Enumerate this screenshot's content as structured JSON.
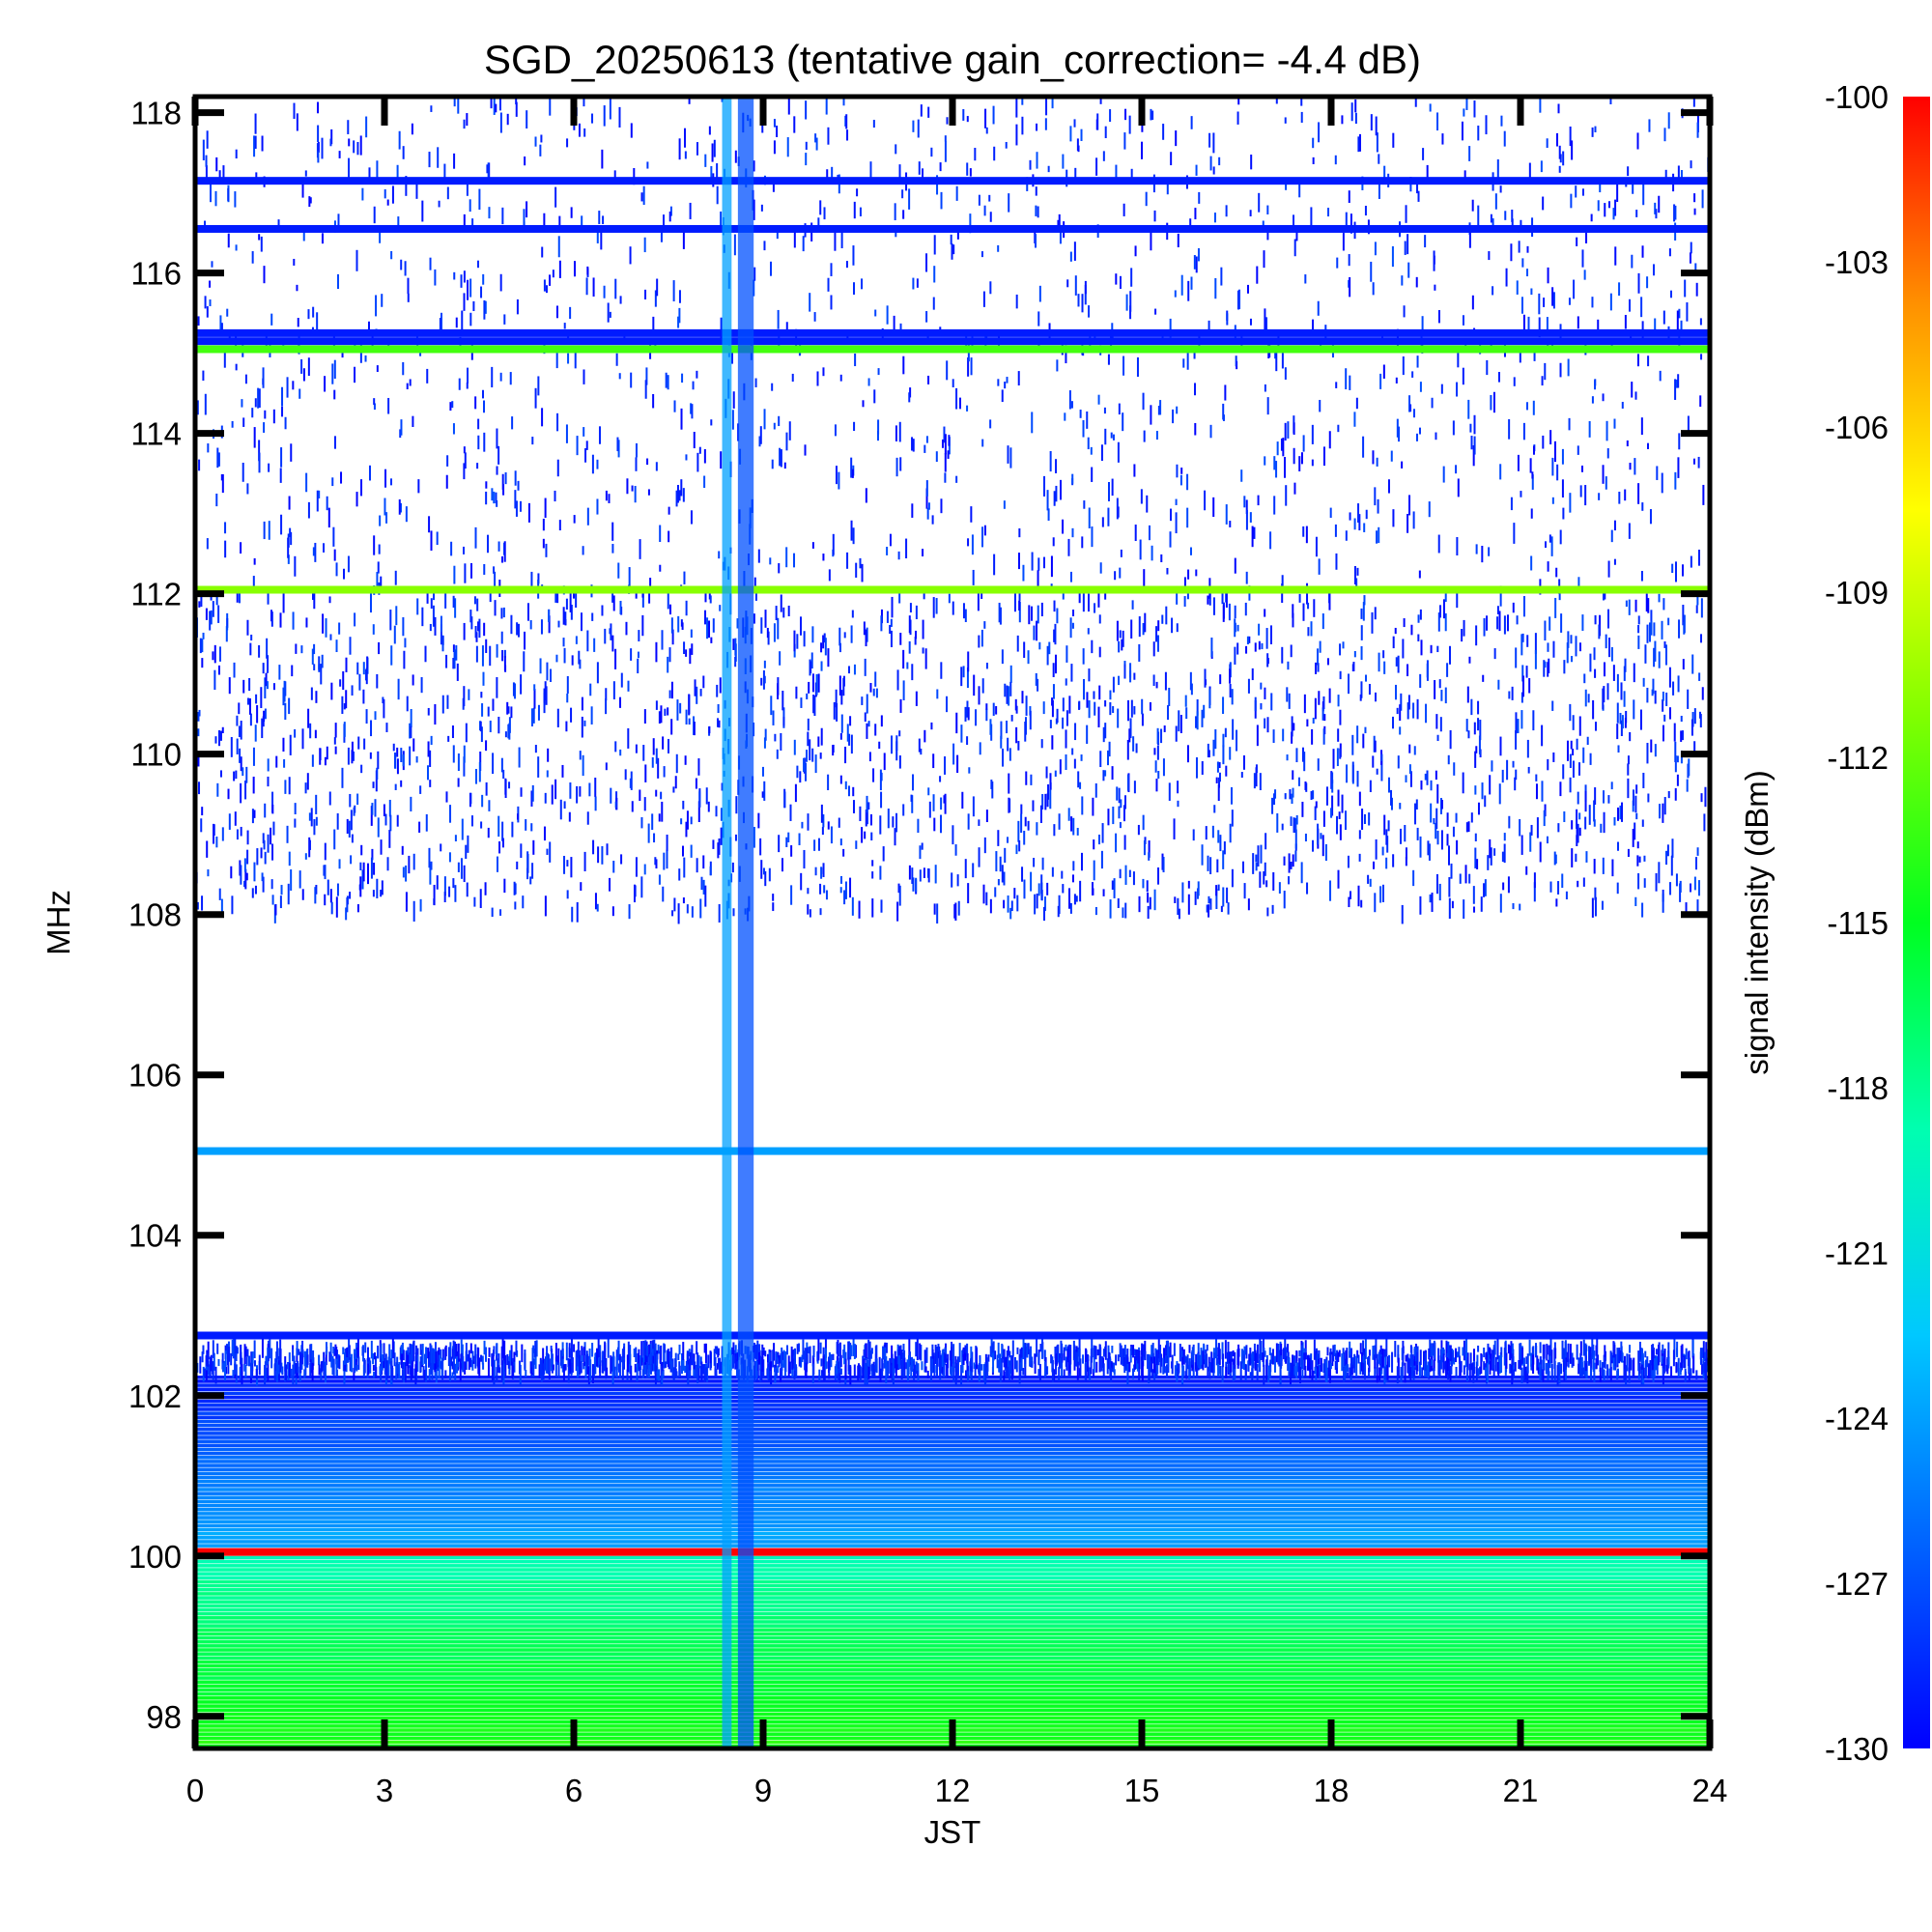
{
  "chart_data": {
    "type": "heatmap",
    "title": "SGD_20250613 (tentative gain_correction= -4.4 dB)",
    "xlabel": "JST",
    "ylabel": "MHz",
    "colorbar_label": "signal intensity (dBm)",
    "xlim": [
      0,
      24
    ],
    "ylim": [
      97.6,
      118.2
    ],
    "x_ticks": [
      0,
      3,
      6,
      9,
      12,
      15,
      18,
      21,
      24
    ],
    "x_tick_labels": [
      "0",
      "3",
      "6",
      "9",
      "12",
      "15",
      "18",
      "21",
      "24"
    ],
    "y_ticks": [
      98,
      100,
      102,
      104,
      106,
      108,
      110,
      112,
      114,
      116,
      118
    ],
    "y_tick_labels": [
      "98",
      "100",
      "102",
      "104",
      "106",
      "108",
      "110",
      "112",
      "114",
      "116",
      "118"
    ],
    "colorbar_range": [
      -130,
      -100
    ],
    "colorbar_ticks": [
      -130,
      -127,
      -124,
      -121,
      -118,
      -115,
      -112,
      -109,
      -106,
      -103,
      -100
    ],
    "colorbar_tick_labels": [
      "-130",
      "-127",
      "-124",
      "-121",
      "-118",
      "-115",
      "-112",
      "-109",
      "-106",
      "-103",
      "-100"
    ],
    "colormap": [
      "#0000ff",
      "#0064ff",
      "#00c8ff",
      "#00ffb0",
      "#00ff20",
      "#80ff00",
      "#ffff00",
      "#ff9000",
      "#ff0000"
    ],
    "grid": false,
    "bands": [
      {
        "freq_low": 97.6,
        "freq_high": 100.0,
        "level_low": -114,
        "level_high": -119
      },
      {
        "freq_low": 100.0,
        "freq_high": 100.3,
        "level_low": -124,
        "level_high": -124
      },
      {
        "freq_low": 100.3,
        "freq_high": 102.25,
        "level_low": -124,
        "level_high": -129
      }
    ],
    "carriers": [
      {
        "freq": 100.05,
        "level": -100
      },
      {
        "freq": 105.05,
        "level": -124
      },
      {
        "freq": 112.05,
        "level": -111
      },
      {
        "freq": 115.05,
        "level": -113
      },
      {
        "freq": 115.15,
        "level": -129
      },
      {
        "freq": 115.25,
        "level": -129
      },
      {
        "freq": 116.55,
        "level": -129
      },
      {
        "freq": 117.15,
        "level": -129
      },
      {
        "freq": 102.75,
        "level": -129
      }
    ],
    "time_bursts": [
      {
        "t_start": 8.35,
        "t_end": 8.5,
        "freq_low": 97.6,
        "freq_high": 118.2,
        "level": -124
      },
      {
        "t_start": 8.6,
        "t_end": 8.85,
        "freq_low": 97.6,
        "freq_high": 118.2,
        "level": -127
      }
    ],
    "noise_regions": [
      {
        "freq_low": 108.0,
        "freq_high": 112.0,
        "density": "high",
        "level": -130
      },
      {
        "freq_low": 112.0,
        "freq_high": 118.2,
        "density": "medium",
        "level": -130
      },
      {
        "freq_low": 102.25,
        "freq_high": 102.6,
        "density": "high",
        "level": -130
      }
    ]
  }
}
